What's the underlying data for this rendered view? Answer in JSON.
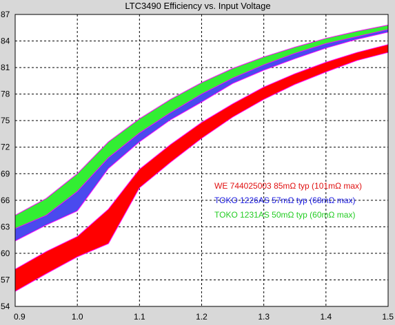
{
  "chart_data": {
    "type": "area",
    "title": "LTC3490 Efficiency vs. Input Voltage",
    "xlabel": "",
    "ylabel": "",
    "xlim": [
      0.9,
      1.5
    ],
    "ylim": [
      54,
      87
    ],
    "x_ticks": [
      "0.9",
      "1.0",
      "1.1",
      "1.2",
      "1.3",
      "1.4",
      "1.5"
    ],
    "y_ticks": [
      "54",
      "57",
      "60",
      "63",
      "66",
      "69",
      "72",
      "75",
      "78",
      "81",
      "84",
      "87"
    ],
    "grid": true,
    "series": [
      {
        "name": "WE 744025003  85mΩ typ (101mΩ max)",
        "color": "#ff0000",
        "x": [
          0.9,
          0.95,
          1.0,
          1.05,
          1.1,
          1.15,
          1.2,
          1.25,
          1.3,
          1.35,
          1.4,
          1.45,
          1.5
        ],
        "upper": [
          58.2,
          60.2,
          61.9,
          65.0,
          69.5,
          72.3,
          74.8,
          76.9,
          78.8,
          80.3,
          81.6,
          82.7,
          83.6
        ],
        "lower": [
          55.7,
          57.7,
          59.6,
          61.1,
          67.4,
          70.3,
          73.0,
          75.4,
          77.4,
          79.1,
          80.5,
          81.8,
          82.7
        ]
      },
      {
        "name": "TOKO 1226AS  57mΩ typ (68mΩ max)",
        "color": "#4a4aee",
        "x": [
          0.9,
          0.95,
          1.0,
          1.05,
          1.1,
          1.15,
          1.2,
          1.25,
          1.3,
          1.35,
          1.4,
          1.45,
          1.5
        ],
        "upper": [
          63.5,
          65.3,
          68.0,
          71.6,
          74.4,
          76.6,
          78.7,
          80.3,
          81.7,
          82.9,
          83.9,
          84.8,
          85.4
        ],
        "lower": [
          61.4,
          63.2,
          64.8,
          69.6,
          72.6,
          75.1,
          77.1,
          79.2,
          80.7,
          82.0,
          83.2,
          84.2,
          85.0
        ]
      },
      {
        "name": "TOKO 1231AS 50mΩ typ (60mΩ max)",
        "color": "#33ee33",
        "x": [
          0.9,
          0.95,
          1.0,
          1.05,
          1.1,
          1.15,
          1.2,
          1.25,
          1.3,
          1.35,
          1.4,
          1.45,
          1.5
        ],
        "upper": [
          64.3,
          66.2,
          69.0,
          72.6,
          75.2,
          77.4,
          79.3,
          80.9,
          82.2,
          83.3,
          84.3,
          85.1,
          85.8
        ],
        "lower": [
          62.8,
          64.3,
          67.0,
          70.8,
          73.6,
          75.9,
          78.0,
          79.8,
          81.3,
          82.6,
          83.7,
          84.5,
          85.3
        ]
      }
    ],
    "legend": {
      "placement": "center-right",
      "entries": [
        {
          "label": "WE 744025003  85mΩ typ (101mΩ max)",
          "color": "#e01010"
        },
        {
          "label": "TOKO 1226AS  57mΩ typ (68mΩ max)",
          "color": "#1c1ce0"
        },
        {
          "label": "TOKO 1231AS 50mΩ typ (60mΩ max)",
          "color": "#22cc22"
        }
      ]
    },
    "colors": {
      "plot_background": "#ffffff",
      "page_background": "#d8d8d8",
      "grid": "#000000",
      "band_edge": "#ff00ff"
    }
  }
}
